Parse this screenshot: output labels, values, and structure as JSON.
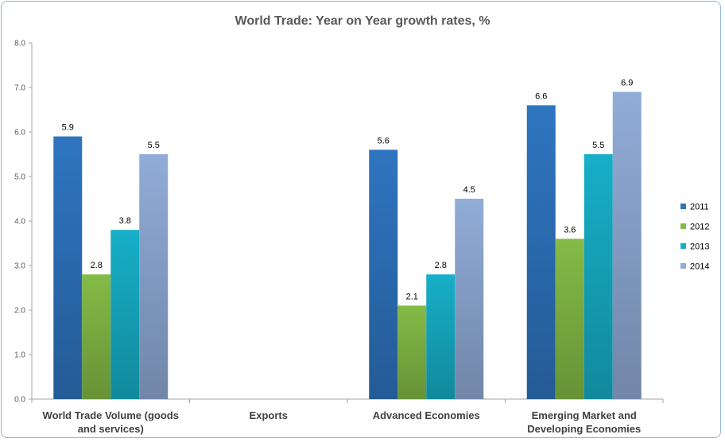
{
  "chart_data": {
    "type": "bar",
    "title": "World Trade: Year on Year growth rates, %",
    "categories": [
      [
        "World Trade Volume (goods",
        "and services)"
      ],
      [
        "Exports"
      ],
      [
        "Advanced Economies"
      ],
      [
        "Emerging Market and",
        "Developing Economies"
      ]
    ],
    "series": [
      {
        "name": "2011",
        "color": "#2e75c0",
        "values": [
          5.9,
          null,
          5.6,
          6.6
        ]
      },
      {
        "name": "2012",
        "color": "#84bb47",
        "values": [
          2.8,
          null,
          2.1,
          3.6
        ]
      },
      {
        "name": "2013",
        "color": "#17afc8",
        "values": [
          3.8,
          null,
          2.8,
          5.5
        ]
      },
      {
        "name": "2014",
        "color": "#91acd8",
        "values": [
          5.5,
          null,
          4.5,
          6.9
        ]
      }
    ],
    "ylim": [
      0,
      8
    ],
    "yticks": [
      "0.0",
      "1.0",
      "2.0",
      "3.0",
      "4.0",
      "5.0",
      "6.0",
      "7.0",
      "8.0"
    ],
    "xlabel": "",
    "ylabel": "",
    "legend": "right"
  }
}
